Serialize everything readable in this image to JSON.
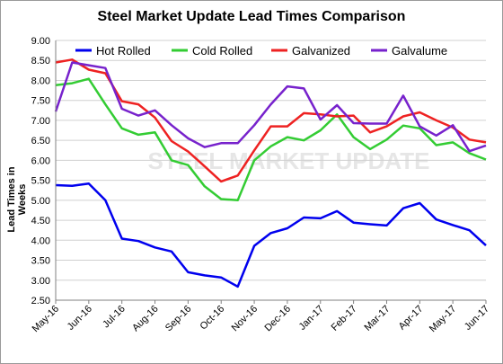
{
  "chart_data": {
    "type": "line",
    "title": "Steel Market Update Lead Times Comparison",
    "ylabel": "Lead Times in Weeks",
    "xlabel": "",
    "watermark": "STEEL MARKET UPDATE",
    "ylim": [
      2.5,
      9.0
    ],
    "yticks": [
      "2.50",
      "3.00",
      "3.50",
      "4.00",
      "4.50",
      "5.00",
      "5.50",
      "6.00",
      "6.50",
      "7.00",
      "7.50",
      "8.00",
      "8.50",
      "9.00"
    ],
    "xtick_labels": [
      "May-16",
      "Jun-16",
      "Jul-16",
      "Aug-16",
      "Sep-16",
      "Oct-16",
      "Nov-16",
      "Dec-16",
      "Jan-17",
      "Feb-17",
      "Mar-17",
      "Apr-17",
      "May-17",
      "Jun-17"
    ],
    "x_periods": 26,
    "legend_position": "top",
    "grid": true,
    "series": [
      {
        "name": "Hot Rolled",
        "color": "#0000ee",
        "values": [
          5.38,
          5.36,
          5.42,
          5.0,
          4.04,
          3.98,
          3.82,
          3.72,
          3.2,
          3.12,
          3.07,
          2.84,
          3.86,
          4.18,
          4.3,
          4.57,
          4.55,
          4.73,
          4.44,
          4.4,
          4.37,
          4.8,
          4.93,
          4.52,
          4.38,
          4.25,
          3.87
        ]
      },
      {
        "name": "Cold Rolled",
        "color": "#33cc33",
        "values": [
          7.88,
          7.93,
          8.04,
          7.4,
          6.8,
          6.64,
          6.7,
          6.0,
          5.88,
          5.35,
          5.03,
          5.0,
          6.0,
          6.35,
          6.58,
          6.5,
          6.75,
          7.15,
          6.58,
          6.28,
          6.52,
          6.87,
          6.8,
          6.38,
          6.45,
          6.18,
          6.02
        ]
      },
      {
        "name": "Galvanized",
        "color": "#ee2222",
        "values": [
          8.45,
          8.52,
          8.27,
          8.18,
          7.48,
          7.4,
          7.07,
          6.48,
          6.22,
          5.85,
          5.47,
          5.62,
          6.25,
          6.85,
          6.85,
          7.18,
          7.15,
          7.1,
          7.12,
          6.7,
          6.85,
          7.1,
          7.2,
          7.0,
          6.82,
          6.52,
          6.45
        ]
      },
      {
        "name": "Galvalume",
        "color": "#7722cc",
        "values": [
          7.22,
          8.45,
          8.38,
          8.31,
          7.29,
          7.12,
          7.25,
          6.88,
          6.55,
          6.33,
          6.43,
          6.43,
          6.88,
          7.4,
          7.85,
          7.8,
          7.02,
          7.38,
          6.93,
          6.92,
          6.92,
          7.62,
          6.85,
          6.62,
          6.88,
          6.23,
          6.37
        ]
      }
    ]
  }
}
